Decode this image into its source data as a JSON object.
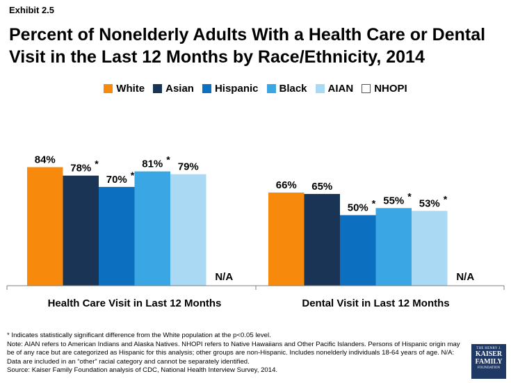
{
  "exhibit": "Exhibit 2.5",
  "title_line1": "Percent of Nonelderly Adults With a Health Care or Dental",
  "title_line2": "Visit in the Last 12 Months by Race/Ethnicity, 2014",
  "colors": {
    "White": "#f7890c",
    "Asian": "#1a3455",
    "Hispanic": "#0c6fc0",
    "Black": "#3aa6e3",
    "AIAN": "#a9d9f3",
    "NHOPI": "#ffffff"
  },
  "chart_data": {
    "type": "bar",
    "categories": [
      "Health Care Visit in Last 12 Months",
      "Dental Visit in Last 12 Months"
    ],
    "series": [
      {
        "name": "White",
        "values": [
          84,
          66
        ],
        "labels": [
          "84%",
          "66%"
        ],
        "significant": [
          false,
          false
        ]
      },
      {
        "name": "Asian",
        "values": [
          78,
          65
        ],
        "labels": [
          "78%",
          "65%"
        ],
        "significant": [
          true,
          false
        ]
      },
      {
        "name": "Hispanic",
        "values": [
          70,
          50
        ],
        "labels": [
          "70%",
          "50%"
        ],
        "significant": [
          true,
          true
        ]
      },
      {
        "name": "Black",
        "values": [
          81,
          55
        ],
        "labels": [
          "81%",
          "55%"
        ],
        "significant": [
          true,
          true
        ]
      },
      {
        "name": "AIAN",
        "values": [
          79,
          53
        ],
        "labels": [
          "79%",
          "53%"
        ],
        "significant": [
          false,
          true
        ]
      },
      {
        "name": "NHOPI",
        "values": [
          null,
          null
        ],
        "labels": [
          "N/A",
          "N/A"
        ],
        "significant": [
          false,
          false
        ]
      }
    ],
    "ylim": [
      0,
      100
    ],
    "significance_marker": "*",
    "legend_position": "top-center",
    "grid": false
  },
  "footnotes": [
    "* Indicates statistically significant difference from the White population at the p<0.05 level.",
    "Note: AIAN refers to American Indians and Alaska Natives. NHOPI refers to Native Hawaiians and Other Pacific Islanders. Persons of Hispanic origin may be of any race but are categorized as Hispanic for this analysis; other groups are non-Hispanic. Includes nonelderly individuals 18-64 years of age. N/A: Data are included in an “other” racial category and cannot be separately identified.",
    "Source: Kaiser Family Foundation analysis of CDC, National Health Interview Survey, 2014."
  ],
  "logo": {
    "line1": "THE HENRY J.",
    "line2": "KAISER",
    "line3": "FAMILY",
    "line4": "FOUNDATION"
  }
}
